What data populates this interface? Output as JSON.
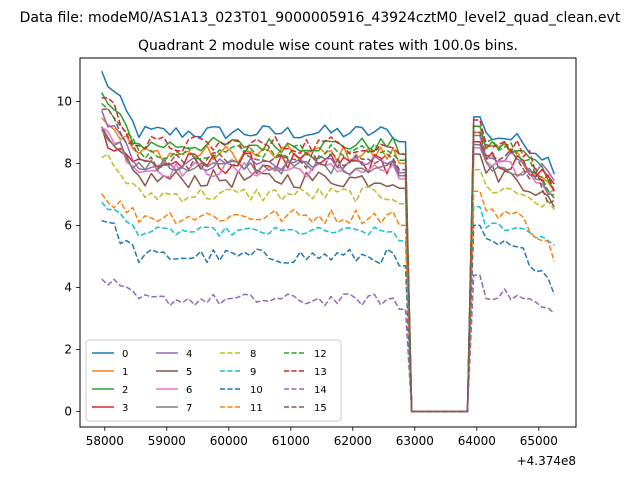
{
  "chart_data": {
    "type": "line",
    "suptitle": "Data file: modeM0/AS1A13_023T01_9000005916_43924cztM0_level2_quad_clean.evt",
    "title": "Quadrant 2 module wise count rates with 100.0s bins.",
    "xlabel": "",
    "ylabel": "",
    "x_offset_label": "+4.374e8",
    "xlim": [
      57600,
      65600
    ],
    "ylim": [
      -0.5,
      11.4
    ],
    "xticks": [
      58000,
      59000,
      60000,
      61000,
      62000,
      63000,
      64000,
      65000
    ],
    "yticks": [
      0,
      2,
      4,
      6,
      8,
      10
    ],
    "xtick_labels": [
      "58000",
      "59000",
      "60000",
      "61000",
      "62000",
      "63000",
      "64000",
      "65000"
    ],
    "ytick_labels": [
      "0",
      "2",
      "4",
      "6",
      "8",
      "10"
    ],
    "bin_s": 100,
    "x_start": 57950,
    "x_end": 65250,
    "gap": [
      62850,
      63950
    ],
    "legend": {
      "position": "lower-left",
      "ncol": 4
    },
    "series": [
      {
        "name": "0",
        "color": "#1f77b4",
        "dash": "solid",
        "level_a": 9.0,
        "start": 10.9,
        "level_b": 8.9,
        "end": 7.9,
        "noise": 0.25
      },
      {
        "name": "1",
        "color": "#ff7f0e",
        "dash": "solid",
        "level_a": 8.3,
        "start": 9.6,
        "level_b": 8.4,
        "end": 7.0,
        "noise": 0.3
      },
      {
        "name": "2",
        "color": "#2ca02c",
        "dash": "solid",
        "level_a": 8.6,
        "start": 10.2,
        "level_b": 8.6,
        "end": 7.3,
        "noise": 0.25
      },
      {
        "name": "3",
        "color": "#d62728",
        "dash": "solid",
        "level_a": 8.0,
        "start": 9.0,
        "level_b": 8.1,
        "end": 7.2,
        "noise": 0.35
      },
      {
        "name": "4",
        "color": "#9467bd",
        "dash": "solid",
        "level_a": 8.0,
        "start": 9.6,
        "level_b": 8.3,
        "end": 7.4,
        "noise": 0.25
      },
      {
        "name": "5",
        "color": "#8c564b",
        "dash": "solid",
        "level_a": 7.5,
        "start": 8.9,
        "level_b": 7.7,
        "end": 6.5,
        "noise": 0.3
      },
      {
        "name": "6",
        "color": "#e377c2",
        "dash": "solid",
        "level_a": 7.8,
        "start": 9.3,
        "level_b": 7.9,
        "end": 7.0,
        "noise": 0.25
      },
      {
        "name": "7",
        "color": "#7f7f7f",
        "dash": "solid",
        "level_a": 7.9,
        "start": 9.2,
        "level_b": 8.0,
        "end": 6.8,
        "noise": 0.25
      },
      {
        "name": "8",
        "color": "#bcbd22",
        "dash": "dashed",
        "level_a": 7.0,
        "start": 8.4,
        "level_b": 7.2,
        "end": 6.4,
        "noise": 0.25
      },
      {
        "name": "9",
        "color": "#17becf",
        "dash": "dashed",
        "level_a": 5.8,
        "start": 6.8,
        "level_b": 6.0,
        "end": 5.4,
        "noise": 0.15
      },
      {
        "name": "10",
        "color": "#1f77b4",
        "dash": "dashed",
        "level_a": 5.0,
        "start": 6.3,
        "level_b": 5.4,
        "end": 4.0,
        "noise": 0.25
      },
      {
        "name": "11",
        "color": "#ff7f0e",
        "dash": "dashed",
        "level_a": 6.3,
        "start": 7.0,
        "level_b": 6.5,
        "end": 5.0,
        "noise": 0.25
      },
      {
        "name": "12",
        "color": "#2ca02c",
        "dash": "dashed",
        "level_a": 8.4,
        "start": 9.9,
        "level_b": 8.6,
        "end": 6.8,
        "noise": 0.25
      },
      {
        "name": "13",
        "color": "#d62728",
        "dash": "dashed",
        "level_a": 8.6,
        "start": 10.3,
        "level_b": 8.8,
        "end": 7.0,
        "noise": 0.3
      },
      {
        "name": "14",
        "color": "#9467bd",
        "dash": "dashed",
        "level_a": 3.6,
        "start": 4.3,
        "level_b": 3.8,
        "end": 3.1,
        "noise": 0.2
      },
      {
        "name": "15",
        "color": "#8c564b",
        "dash": "dashed",
        "level_a": 8.1,
        "start": 10.0,
        "level_b": 8.4,
        "end": 6.6,
        "noise": 0.3
      }
    ]
  }
}
